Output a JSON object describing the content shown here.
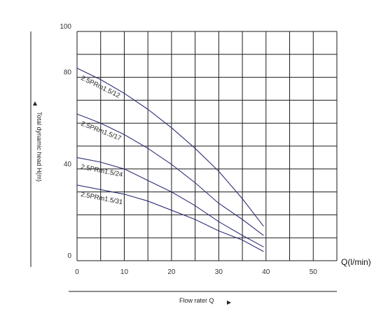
{
  "chart_data": {
    "type": "line",
    "xlabel": "Flow rater Q",
    "ylabel": "Total dynamic head H(m)",
    "x_unit_label": "Q(l/min)",
    "xlim": [
      0,
      55
    ],
    "ylim": [
      0,
      100
    ],
    "x_ticks": [
      0,
      10,
      20,
      30,
      40,
      50
    ],
    "y_tick_labels": [
      {
        "value": 100,
        "label": "100"
      },
      {
        "value": 80,
        "label": "80"
      },
      {
        "value": 40,
        "label": "40"
      },
      {
        "value": 0,
        "label": "0"
      }
    ],
    "grid": true,
    "series": [
      {
        "name": "2.5PRm1.5/12",
        "x": [
          0,
          5,
          10,
          15,
          20,
          25,
          30,
          35,
          39.5
        ],
        "y": [
          84,
          79,
          73,
          66,
          58,
          49,
          39,
          27,
          15
        ]
      },
      {
        "name": "2.5PRm1.5/17",
        "x": [
          0,
          5,
          10,
          15,
          20,
          25,
          30,
          35,
          39.5
        ],
        "y": [
          64,
          60,
          55,
          49,
          42,
          34,
          25,
          18,
          11
        ]
      },
      {
        "name": "2.5PRm1.5/24",
        "x": [
          0,
          5,
          10,
          15,
          20,
          25,
          30,
          35,
          39.5
        ],
        "y": [
          45,
          43,
          40,
          35,
          30,
          24,
          17,
          11,
          6
        ]
      },
      {
        "name": "2.5PRm1.5/31",
        "x": [
          0,
          5,
          10,
          15,
          20,
          25,
          30,
          35,
          39.5
        ],
        "y": [
          33,
          31,
          29,
          26,
          22,
          18,
          13,
          9,
          4
        ]
      }
    ]
  }
}
